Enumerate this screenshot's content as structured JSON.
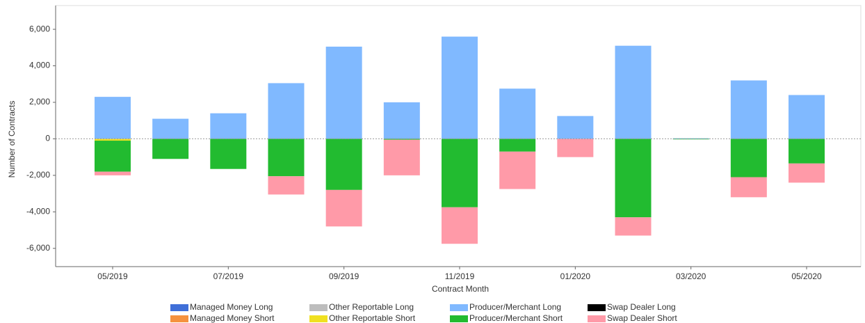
{
  "chart_data": {
    "type": "stacked_bar",
    "x_label": "Contract Month",
    "y_label": "Number of Contracts",
    "categories": [
      "05/2019",
      null,
      "07/2019",
      null,
      "09/2019",
      null,
      "11/2019",
      null,
      "01/2020",
      null,
      "03/2020",
      null,
      "05/2020"
    ],
    "series": [
      {
        "name": "Managed Money Long",
        "color": "#3f6fd8",
        "values": [
          0,
          0,
          0,
          0,
          0,
          0,
          0,
          0,
          0,
          0,
          0,
          0,
          0
        ]
      },
      {
        "name": "Managed Money Short",
        "color": "#f5923e",
        "values": [
          0,
          0,
          0,
          0,
          0,
          0,
          0,
          0,
          0,
          0,
          0,
          0,
          0
        ]
      },
      {
        "name": "Other Reportable Long",
        "color": "#bdbdbd",
        "values": [
          0,
          0,
          0,
          0,
          0,
          0,
          0,
          0,
          0,
          0,
          0,
          0,
          0
        ]
      },
      {
        "name": "Other Reportable Short",
        "color": "#f0e020",
        "values": [
          -100,
          0,
          0,
          0,
          0,
          0,
          0,
          0,
          0,
          0,
          0,
          0,
          0
        ]
      },
      {
        "name": "Producer/Merchant Long",
        "color": "#80b9ff",
        "values": [
          2300,
          1100,
          1400,
          3050,
          5050,
          2000,
          5600,
          2750,
          1250,
          5100,
          30,
          3200,
          2400
        ]
      },
      {
        "name": "Producer/Merchant Short",
        "color": "#22bb30",
        "values": [
          -1700,
          -1100,
          -1650,
          -2050,
          -2800,
          -50,
          -3750,
          -700,
          0,
          -4300,
          -30,
          -2100,
          -1350
        ]
      },
      {
        "name": "Swap Dealer Long",
        "color": "#000000",
        "values": [
          0,
          0,
          0,
          0,
          0,
          0,
          0,
          0,
          0,
          0,
          0,
          0,
          0
        ]
      },
      {
        "name": "Swap Dealer Short",
        "color": "#ff9aa8",
        "values": [
          -200,
          0,
          0,
          -1000,
          -2000,
          -1950,
          -2000,
          -2050,
          -1000,
          -1000,
          0,
          -1100,
          -1050
        ]
      }
    ],
    "ylim": [
      -7000,
      7300
    ],
    "yticks": [
      {
        "value": -6000,
        "label": "-6,000"
      },
      {
        "value": -4000,
        "label": "-4,000"
      },
      {
        "value": -2000,
        "label": "-2,000"
      },
      0,
      {
        "value": 2000,
        "label": "2,000"
      },
      {
        "value": 4000,
        "label": "4,000"
      },
      {
        "value": 6000,
        "label": "6,000"
      }
    ]
  }
}
